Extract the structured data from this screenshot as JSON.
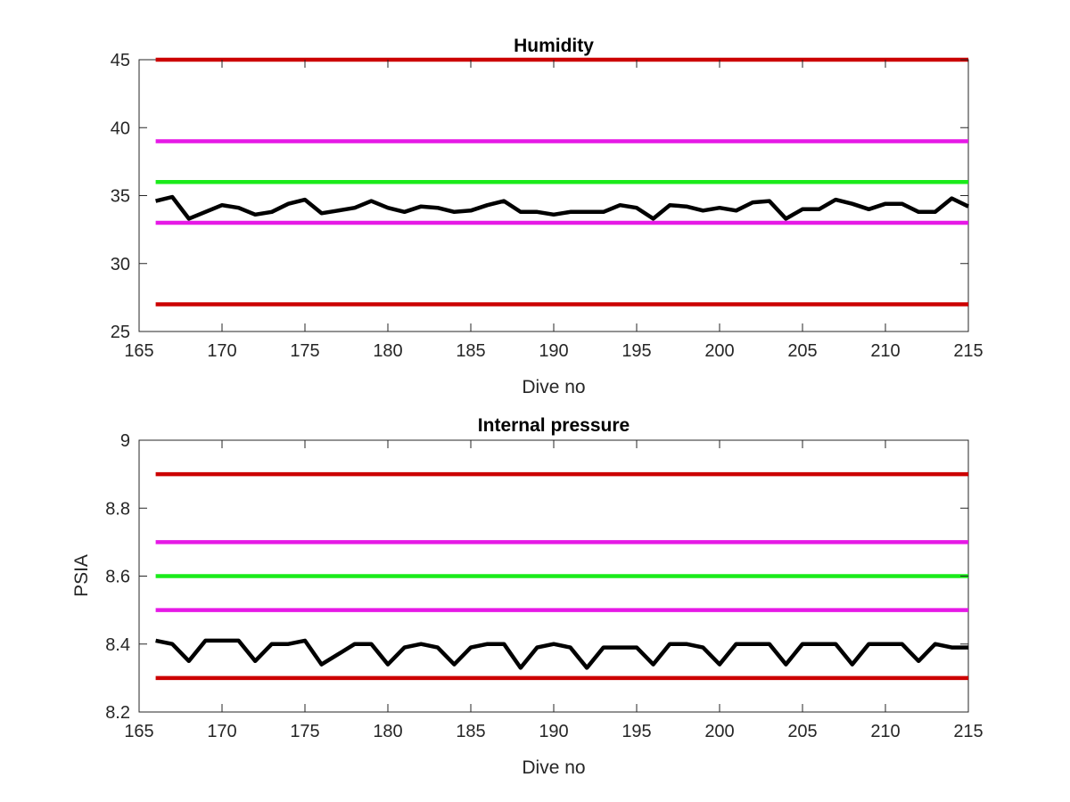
{
  "chart_data": [
    {
      "type": "line",
      "title": "Humidity",
      "xlabel": "Dive no",
      "ylabel": "",
      "xlim": [
        165,
        215
      ],
      "ylim": [
        25,
        45
      ],
      "xticks": [
        165,
        170,
        175,
        180,
        185,
        190,
        195,
        200,
        205,
        210,
        215
      ],
      "yticks": [
        25,
        30,
        35,
        40,
        45
      ],
      "grid": false,
      "limit_lines": [
        {
          "y": 45,
          "color": "#cc0000"
        },
        {
          "y": 39,
          "color": "#e619e6"
        },
        {
          "y": 36,
          "color": "#1aeb1a"
        },
        {
          "y": 33,
          "color": "#e619e6"
        },
        {
          "y": 27,
          "color": "#cc0000"
        }
      ],
      "series": [
        {
          "color": "#000000",
          "x": [
            166,
            167,
            168,
            169,
            170,
            171,
            172,
            173,
            174,
            175,
            176,
            177,
            178,
            179,
            180,
            181,
            182,
            183,
            184,
            185,
            186,
            187,
            188,
            189,
            190,
            191,
            192,
            193,
            194,
            195,
            196,
            197,
            198,
            199,
            200,
            201,
            202,
            203,
            204,
            205,
            206,
            207,
            208,
            209,
            210,
            211,
            212,
            213,
            214,
            215
          ],
          "values": [
            34.6,
            34.9,
            33.3,
            33.8,
            34.3,
            34.1,
            33.6,
            33.8,
            34.4,
            34.7,
            33.7,
            33.9,
            34.1,
            34.6,
            34.1,
            33.8,
            34.2,
            34.1,
            33.8,
            33.9,
            34.3,
            34.6,
            33.8,
            33.8,
            33.6,
            33.8,
            33.8,
            33.8,
            34.3,
            34.1,
            33.3,
            34.3,
            34.2,
            33.9,
            34.1,
            33.9,
            34.5,
            34.6,
            33.3,
            34.0,
            34.0,
            34.7,
            34.4,
            34.0,
            34.4,
            34.4,
            33.8,
            33.8,
            34.8,
            34.2
          ]
        }
      ]
    },
    {
      "type": "line",
      "title": "Internal pressure",
      "xlabel": "Dive no",
      "ylabel": "PSIA",
      "xlim": [
        165,
        215
      ],
      "ylim": [
        8.2,
        9
      ],
      "xticks": [
        165,
        170,
        175,
        180,
        185,
        190,
        195,
        200,
        205,
        210,
        215
      ],
      "yticks": [
        8.2,
        8.4,
        8.6,
        8.8,
        9
      ],
      "grid": false,
      "limit_lines": [
        {
          "y": 8.9,
          "color": "#cc0000"
        },
        {
          "y": 8.7,
          "color": "#e619e6"
        },
        {
          "y": 8.6,
          "color": "#1aeb1a"
        },
        {
          "y": 8.5,
          "color": "#e619e6"
        },
        {
          "y": 8.3,
          "color": "#cc0000"
        }
      ],
      "series": [
        {
          "color": "#000000",
          "x": [
            166,
            167,
            168,
            169,
            170,
            171,
            172,
            173,
            174,
            175,
            176,
            177,
            178,
            179,
            180,
            181,
            182,
            183,
            184,
            185,
            186,
            187,
            188,
            189,
            190,
            191,
            192,
            193,
            194,
            195,
            196,
            197,
            198,
            199,
            200,
            201,
            202,
            203,
            204,
            205,
            206,
            207,
            208,
            209,
            210,
            211,
            212,
            213,
            214,
            215
          ],
          "values": [
            8.41,
            8.4,
            8.35,
            8.41,
            8.41,
            8.41,
            8.35,
            8.4,
            8.4,
            8.41,
            8.34,
            8.37,
            8.4,
            8.4,
            8.34,
            8.39,
            8.4,
            8.39,
            8.34,
            8.39,
            8.4,
            8.4,
            8.33,
            8.39,
            8.4,
            8.39,
            8.33,
            8.39,
            8.39,
            8.39,
            8.34,
            8.4,
            8.4,
            8.39,
            8.34,
            8.4,
            8.4,
            8.4,
            8.34,
            8.4,
            8.4,
            8.4,
            8.34,
            8.4,
            8.4,
            8.4,
            8.35,
            8.4,
            8.39,
            8.39
          ]
        }
      ]
    }
  ]
}
